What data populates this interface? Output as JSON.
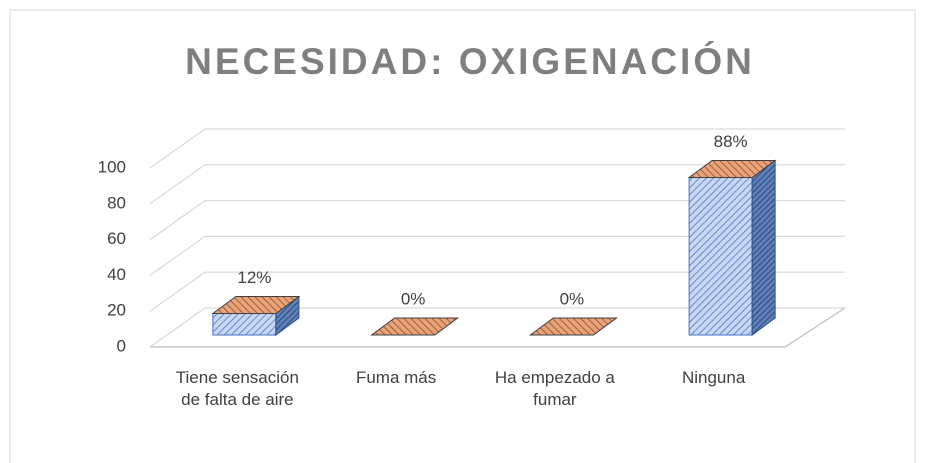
{
  "chart_data": {
    "type": "bar3d",
    "title": "NECESIDAD: OXIGENACIÓN",
    "categories": [
      "Tiene sensación de falta de aire",
      "Fuma más",
      "Ha empezado a fumar",
      "Ninguna"
    ],
    "values": [
      12,
      0,
      0,
      88
    ],
    "value_labels": [
      "12%",
      "0%",
      "0%",
      "88%"
    ],
    "ylim": [
      0,
      100
    ],
    "yticks": [
      0,
      20,
      40,
      60,
      80,
      100
    ],
    "grid": true,
    "color": "#4472c4"
  }
}
